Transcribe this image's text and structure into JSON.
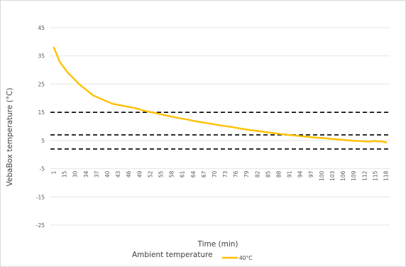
{
  "chart_data": {
    "type": "line",
    "title": "",
    "xlabel": "Time (min)",
    "ylabel": "VebaBox temperature (°C)",
    "ylim": [
      -30,
      50
    ],
    "y_ticks": [
      45,
      35,
      25,
      15,
      5,
      -5,
      -15,
      -25
    ],
    "x_tick_labels": [
      "1",
      "15",
      "30",
      "34",
      "37",
      "40",
      "43",
      "46",
      "49",
      "52",
      "55",
      "58",
      "61",
      "64",
      "67",
      "70",
      "73",
      "76",
      "79",
      "82",
      "85",
      "88",
      "91",
      "94",
      "97",
      "100",
      "103",
      "106",
      "109",
      "112",
      "115",
      "118"
    ],
    "grid": true,
    "legend_title": "Ambient temperature",
    "legend_position": "bottom",
    "series": [
      {
        "name": "40°C",
        "color": "#FFC000",
        "x": [
          1,
          3,
          6,
          10,
          15,
          22,
          30,
          34,
          37,
          40,
          43,
          46,
          49,
          52,
          55,
          58,
          61,
          64,
          67,
          70,
          73,
          76,
          79,
          82,
          85,
          88,
          91,
          94,
          97,
          100,
          103,
          106,
          109,
          112,
          113,
          115,
          116,
          117,
          118,
          119,
          120
        ],
        "values": [
          38,
          33,
          29,
          25,
          21,
          18,
          16.5,
          15.4,
          14.8,
          14.1,
          13.5,
          12.9,
          12.4,
          11.8,
          11.3,
          10.8,
          10.3,
          9.9,
          9.4,
          8.9,
          8.5,
          8.1,
          7.7,
          7.3,
          7.0,
          6.7,
          6.4,
          6.1,
          5.9,
          5.6,
          5.4,
          5.1,
          4.9,
          4.7,
          4.6,
          4.7,
          4.9,
          4.6,
          4.8,
          4.5,
          4.3
        ]
      }
    ],
    "reference_lines": [
      {
        "y": 15,
        "style": "dashed",
        "color": "#000000"
      },
      {
        "y": 7,
        "style": "dashed",
        "color": "#000000"
      },
      {
        "y": 2,
        "style": "dashed",
        "color": "#000000"
      }
    ]
  }
}
